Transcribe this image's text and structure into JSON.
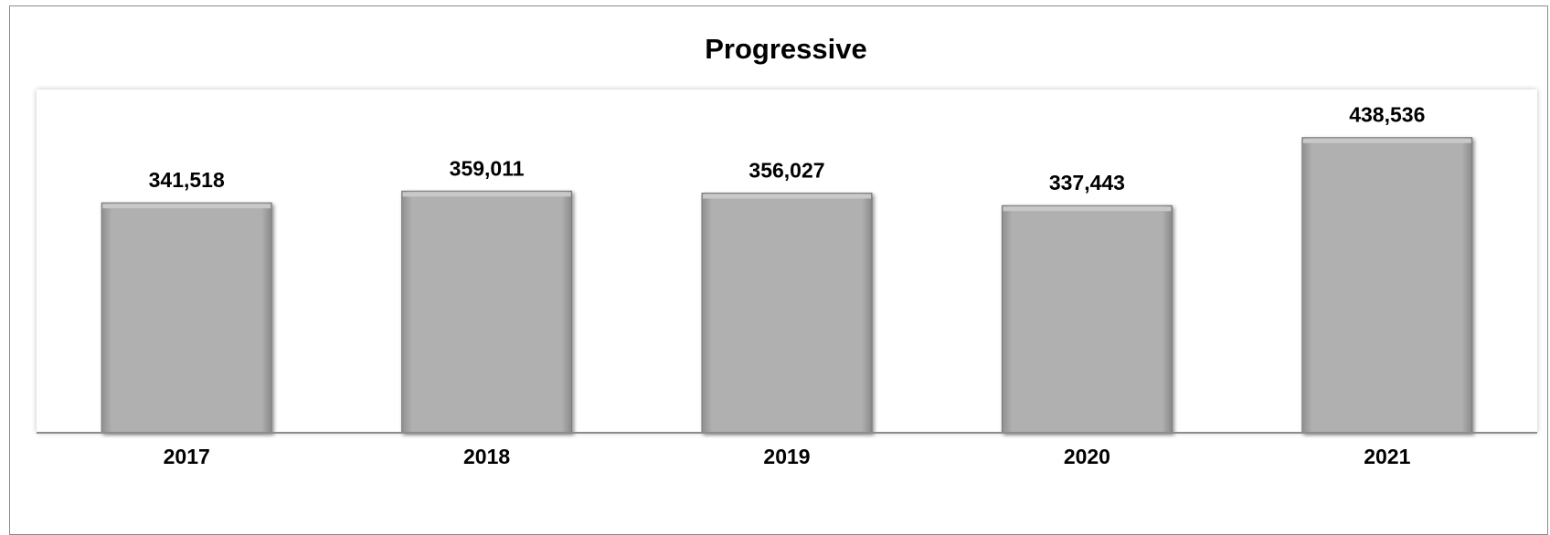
{
  "chart_data": {
    "type": "bar",
    "title": "Progressive",
    "categories": [
      "2017",
      "2018",
      "2019",
      "2020",
      "2021"
    ],
    "values": [
      341518,
      359011,
      356027,
      337443,
      438536
    ],
    "data_labels": [
      "341,518",
      "359,011",
      "356,027",
      "337,443",
      "438,536"
    ],
    "xlabel": "",
    "ylabel": "",
    "ylim": [
      0,
      510000
    ],
    "grid": false,
    "legend": "none",
    "bar_color": "#b0b0b0",
    "axis_color": "#8c8c8c"
  }
}
